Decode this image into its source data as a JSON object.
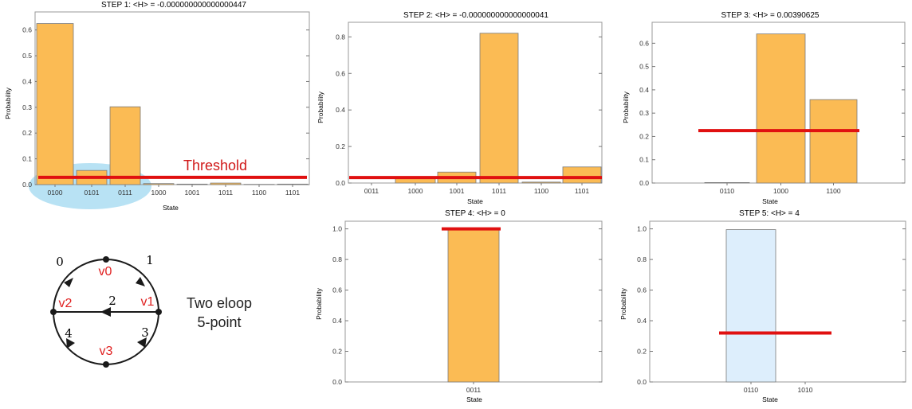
{
  "chart_data": [
    {
      "type": "bar",
      "title": "STEP 1: <H> = -0.000000000000000447",
      "xlabel": "State",
      "ylabel": "Probability",
      "ylim": [
        0,
        0.67
      ],
      "yticks": [
        "0.0",
        "0.1",
        "0.2",
        "0.3",
        "0.4",
        "0.5",
        "0.6"
      ],
      "categories": [
        "0100",
        "0101",
        "0111",
        "1000",
        "1001",
        "1011",
        "1100",
        "1101"
      ],
      "values": [
        0.625,
        0.055,
        0.302,
        0.004,
        0.002,
        0.006,
        0.001,
        0.002
      ],
      "threshold": 0.028,
      "threshold_label": "Threshold",
      "bar_color": "#fbbb54"
    },
    {
      "type": "bar",
      "title": "STEP 2: <H> = -0.000000000000000041",
      "xlabel": "State",
      "ylabel": "Probability",
      "ylim": [
        0,
        0.88
      ],
      "yticks": [
        "0.0",
        "0.2",
        "0.4",
        "0.6",
        "0.8"
      ],
      "categories": [
        "0011",
        "1000",
        "1001",
        "1011",
        "1100",
        "1101"
      ],
      "values": [
        0.0,
        0.025,
        0.06,
        0.82,
        0.005,
        0.088
      ],
      "threshold": 0.03,
      "bar_color": "#fbbb54"
    },
    {
      "type": "bar",
      "title": "STEP 3: <H> = 0.00390625",
      "xlabel": "State",
      "ylabel": "Probability",
      "ylim": [
        0,
        0.69
      ],
      "yticks": [
        "0.0",
        "0.1",
        "0.2",
        "0.3",
        "0.4",
        "0.5",
        "0.6"
      ],
      "categories": [
        "0110",
        "1000",
        "1100"
      ],
      "values": [
        0.002,
        0.64,
        0.358
      ],
      "threshold": 0.225,
      "bar_color": "#fbbb54"
    },
    {
      "type": "bar",
      "title": "STEP 4: <H> = 0",
      "xlabel": "State",
      "ylabel": "Probability",
      "ylim": [
        0,
        1.05
      ],
      "yticks": [
        "0.0",
        "0.2",
        "0.4",
        "0.6",
        "0.8",
        "1.0"
      ],
      "categories": [
        "0011"
      ],
      "values": [
        1.0
      ],
      "threshold": 1.0,
      "bar_color": "#fbbb54"
    },
    {
      "type": "bar",
      "title": "STEP 5: <H> = 4",
      "xlabel": "State",
      "ylabel": "Probability",
      "ylim": [
        0,
        1.05
      ],
      "yticks": [
        "0.0",
        "0.2",
        "0.4",
        "0.6",
        "0.8",
        "1.0"
      ],
      "categories": [
        "0110",
        "1010"
      ],
      "values": [
        0.995,
        0.0
      ],
      "threshold": 0.32,
      "bar_color": "#ddeefc"
    }
  ],
  "diagram": {
    "edge_labels": [
      "0",
      "1",
      "2",
      "3",
      "4"
    ],
    "vertex_labels": [
      "v0",
      "v1",
      "v2",
      "v3"
    ],
    "caption_line1": "Two eloop",
    "caption_line2": "5-point",
    "vertex_label_color": "#e02020"
  },
  "colors": {
    "threshold": "#e01010",
    "highlight": "#b8e2f4"
  }
}
